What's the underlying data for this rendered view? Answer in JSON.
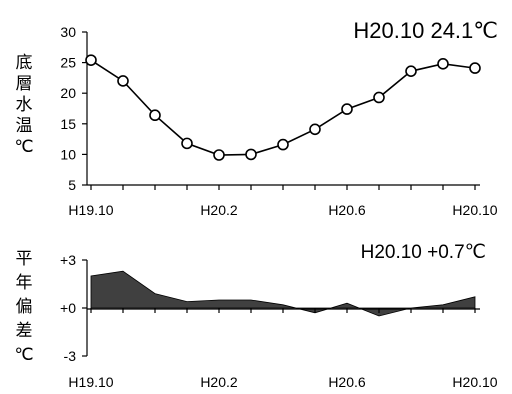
{
  "chart_data": [
    {
      "type": "line",
      "annotation": "H20.10  24.1℃",
      "ylabel": "底層水温℃",
      "ylim": [
        5,
        30
      ],
      "yticks": [
        "5",
        "10",
        "15",
        "20",
        "25",
        "30"
      ],
      "xtick_labels": [
        "H19.10",
        "H20.2",
        "H20.6",
        "H20.10"
      ],
      "values": [
        25.4,
        22.0,
        16.4,
        11.8,
        9.9,
        10.0,
        11.6,
        14.1,
        17.4,
        19.3,
        23.6,
        24.8,
        24.1
      ],
      "color": "#000000",
      "marker": "circle-open",
      "grid": false
    },
    {
      "type": "area",
      "annotation": "H20.10  +0.7℃",
      "ylabel": "平年偏差℃",
      "ylim": [
        -3,
        3
      ],
      "yticks": [
        "-3",
        "+0",
        "+3"
      ],
      "xtick_labels": [
        "H19.10",
        "H20.2",
        "H20.6",
        "H20.10"
      ],
      "values": [
        2.0,
        2.3,
        0.9,
        0.4,
        0.5,
        0.5,
        0.2,
        -0.3,
        0.3,
        -0.5,
        0.0,
        0.2,
        0.7
      ],
      "fill_color": "#404040",
      "grid": false
    }
  ]
}
